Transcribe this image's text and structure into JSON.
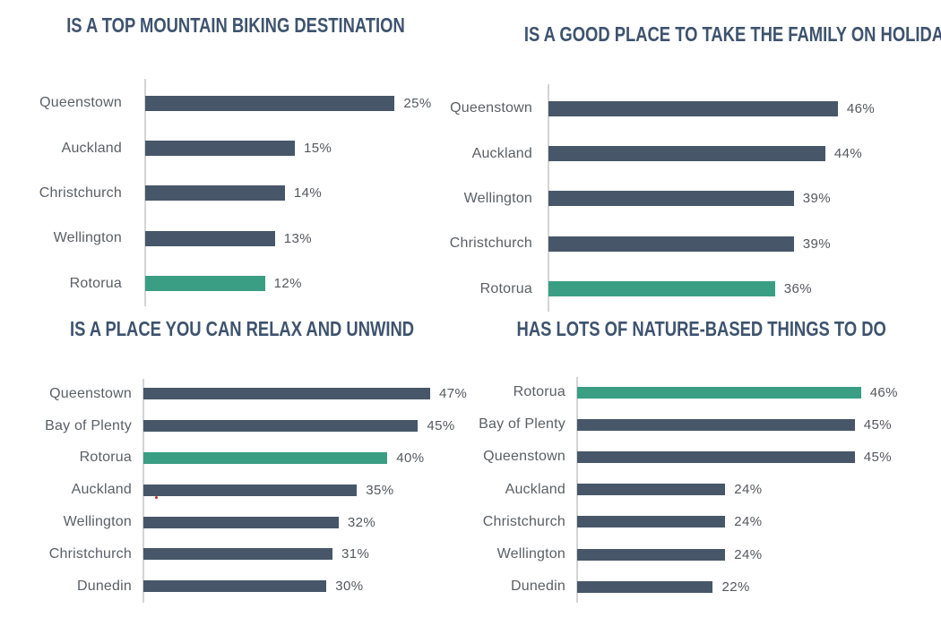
{
  "colors": {
    "bar_default": "#475769",
    "bar_highlight": "#3a9e85",
    "title": "#3e536e",
    "label": "#5a6066",
    "value": "#54585e",
    "axis": "#d4d4d4",
    "artifact_dot": "#b03a2e"
  },
  "chart_data": [
    {
      "type": "bar",
      "orientation": "horizontal",
      "title": "IS A TOP MOUNTAIN BIKING DESTINATION",
      "categories": [
        "Queenstown",
        "Auckland",
        "Christchurch",
        "Wellington",
        "Rotorua"
      ],
      "values": [
        25,
        15,
        14,
        13,
        12
      ],
      "highlight_category": "Rotorua",
      "value_suffix": "%",
      "xlim": [
        0,
        30
      ],
      "grid": false,
      "legend": false
    },
    {
      "type": "bar",
      "orientation": "horizontal",
      "title": "IS A GOOD PLACE TO TAKE THE FAMILY ON HOLIDAY",
      "categories": [
        "Queenstown",
        "Auckland",
        "Wellington",
        "Christchurch",
        "Rotorua"
      ],
      "values": [
        46,
        44,
        39,
        39,
        36
      ],
      "highlight_category": "Rotorua",
      "value_suffix": "%",
      "xlim": [
        0,
        50
      ],
      "grid": false,
      "legend": false
    },
    {
      "type": "bar",
      "orientation": "horizontal",
      "title": "IS A PLACE YOU CAN RELAX AND UNWIND",
      "categories": [
        "Queenstown",
        "Bay of Plenty",
        "Rotorua",
        "Auckland",
        "Wellington",
        "Christchurch",
        "Dunedin"
      ],
      "values": [
        47,
        45,
        40,
        35,
        32,
        31,
        30
      ],
      "highlight_category": "Rotorua",
      "value_suffix": "%",
      "xlim": [
        0,
        52
      ],
      "grid": false,
      "legend": false
    },
    {
      "type": "bar",
      "orientation": "horizontal",
      "title": "HAS LOTS OF NATURE-BASED THINGS TO DO",
      "categories": [
        "Rotorua",
        "Bay of Plenty",
        "Queenstown",
        "Auckland",
        "Christchurch",
        "Wellington",
        "Dunedin"
      ],
      "values": [
        46,
        45,
        45,
        24,
        24,
        24,
        22
      ],
      "highlight_category": "Rotorua",
      "value_suffix": "%",
      "xlim": [
        0,
        52
      ],
      "grid": false,
      "legend": false
    }
  ]
}
